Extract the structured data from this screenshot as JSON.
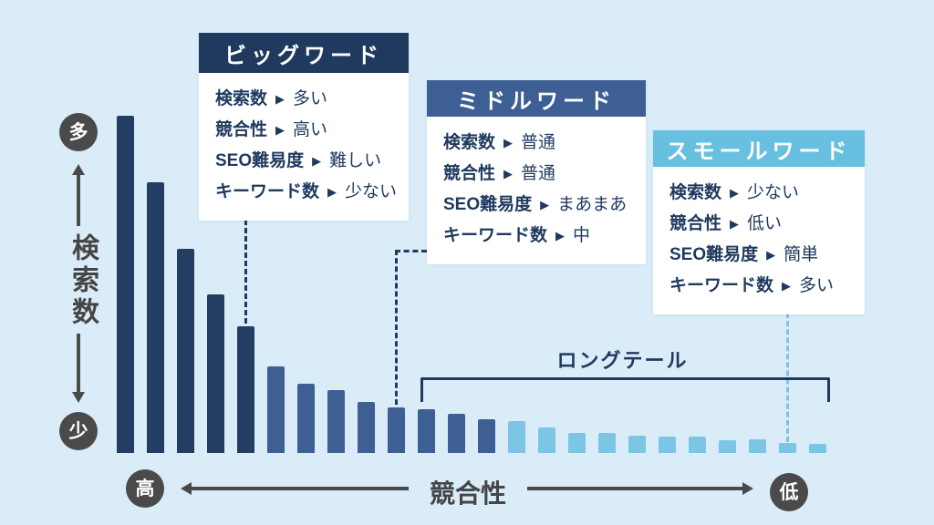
{
  "colors": {
    "background": "#d9ecf8",
    "dark_navy": "#1f3a5e",
    "medium_blue": "#3d5f94",
    "light_blue": "#7cc5e4",
    "badge_gray": "#4a4a4a",
    "card_body": "#ffffff"
  },
  "icons": {
    "row_arrow": "▶"
  },
  "cards": [
    {
      "title": "ビッグワード",
      "header_color": "#1f3a5e",
      "rows": [
        {
          "label": "検索数",
          "value": "多い"
        },
        {
          "label": "競合性",
          "value": "高い"
        },
        {
          "label": "SEO難易度",
          "value": "難しい"
        },
        {
          "label": "キーワード数",
          "value": "少ない"
        }
      ]
    },
    {
      "title": "ミドルワード",
      "header_color": "#3d5f94",
      "rows": [
        {
          "label": "検索数",
          "value": "普通"
        },
        {
          "label": "競合性",
          "value": "普通"
        },
        {
          "label": "SEO難易度",
          "value": "まあまあ"
        },
        {
          "label": "キーワード数",
          "value": "中"
        }
      ]
    },
    {
      "title": "スモールワード",
      "header_color": "#68c0e0",
      "rows": [
        {
          "label": "検索数",
          "value": "少ない"
        },
        {
          "label": "競合性",
          "value": "低い"
        },
        {
          "label": "SEO難易度",
          "value": "簡単"
        },
        {
          "label": "キーワード数",
          "value": "多い"
        }
      ]
    }
  ],
  "chart_data": {
    "type": "bar",
    "title": "",
    "annotation": "ロングテール",
    "y_axis": {
      "label": "検索数",
      "top": "多",
      "bottom": "少"
    },
    "x_axis": {
      "label": "競合性",
      "left": "高",
      "right": "低"
    },
    "values": [
      370,
      297,
      224,
      174,
      139,
      95,
      76,
      69,
      56,
      50,
      48,
      43,
      37,
      35,
      28,
      22,
      22,
      19,
      18,
      18,
      14,
      15,
      11,
      10
    ],
    "segments": [
      {
        "name": "ビッグワード",
        "from": 0,
        "to": 4,
        "color": "#233d63"
      },
      {
        "name": "ミドルワード",
        "from": 5,
        "to": 12,
        "color": "#3d5f94"
      },
      {
        "name": "スモールワード",
        "from": 13,
        "to": 23,
        "color": "#7cc5e4"
      }
    ],
    "grid": false,
    "legend": false
  }
}
